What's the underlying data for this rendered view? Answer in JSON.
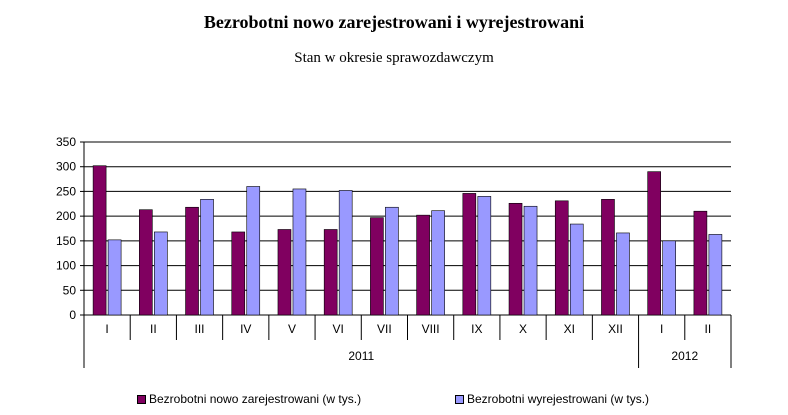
{
  "title": "Bezrobotni nowo zarejestrowani i wyrejestrowani",
  "subtitle": "Stan w okresie sprawozdawczym",
  "colors": {
    "series1": "#800060",
    "series2": "#9999ff",
    "grid": "#000000"
  },
  "chart_data": {
    "type": "bar",
    "title": "Bezrobotni nowo zarejestrowani i wyrejestrowani",
    "subtitle": "Stan w okresie sprawozdawczym",
    "categories": [
      "I",
      "II",
      "III",
      "IV",
      "V",
      "VI",
      "VII",
      "VIII",
      "IX",
      "X",
      "XI",
      "XII",
      "I",
      "II"
    ],
    "groups": [
      {
        "label": "2011",
        "count": 12
      },
      {
        "label": "2012",
        "count": 2
      }
    ],
    "series": [
      {
        "name": "Bezrobotni nowo zarejestrowani (w tys.)",
        "values": [
          302,
          213,
          218,
          168,
          173,
          173,
          197,
          202,
          246,
          226,
          231,
          234,
          290,
          210
        ]
      },
      {
        "name": "Bezrobotni wyrejestrowani (w tys.)",
        "values": [
          152,
          168,
          234,
          260,
          255,
          252,
          218,
          211,
          240,
          220,
          184,
          166,
          150,
          163
        ]
      }
    ],
    "ylim": [
      0,
      350
    ],
    "yticks": [
      0,
      50,
      100,
      150,
      200,
      250,
      300,
      350
    ],
    "grid": true,
    "legend": "bottom"
  }
}
